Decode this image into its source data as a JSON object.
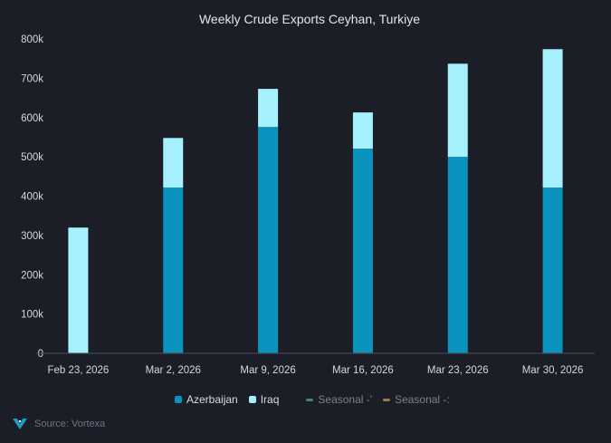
{
  "chart_data": {
    "type": "bar",
    "stacked": true,
    "title": "Weekly Crude Exports Ceyhan, Turkiye",
    "categories": [
      "Feb 23, 2026",
      "Mar 2, 2026",
      "Mar 9, 2026",
      "Mar 16, 2026",
      "Mar 23, 2026",
      "Mar 30, 2026"
    ],
    "series": [
      {
        "name": "Azerbaijan",
        "color": "#0a93bd",
        "values": [
          0,
          422000,
          576000,
          521000,
          500000,
          422000
        ]
      },
      {
        "name": "Iraq",
        "color": "#a6f1fd",
        "values": [
          320000,
          126000,
          97000,
          92000,
          237000,
          352000
        ]
      }
    ],
    "ylim": [
      0,
      800000
    ],
    "yticks": [
      "0",
      "100k",
      "200k",
      "300k",
      "400k",
      "500k",
      "600k",
      "700k",
      "800k"
    ],
    "grid": false,
    "legend_placement": "bottom"
  },
  "legend": [
    {
      "label": "Azerbaijan",
      "color": "#0a93bd",
      "kind": "square"
    },
    {
      "label": "Iraq",
      "color": "#a6f1fd",
      "kind": "square"
    },
    {
      "label": "Seasonal -'",
      "color": "#3f8a70",
      "kind": "line",
      "hidden": true
    },
    {
      "label": "Seasonal -:",
      "color": "#a07f3a",
      "kind": "line",
      "hidden": true
    }
  ],
  "footer": {
    "source": "Source: Vortexa",
    "logo_icon": "vortexa-logo-icon"
  }
}
